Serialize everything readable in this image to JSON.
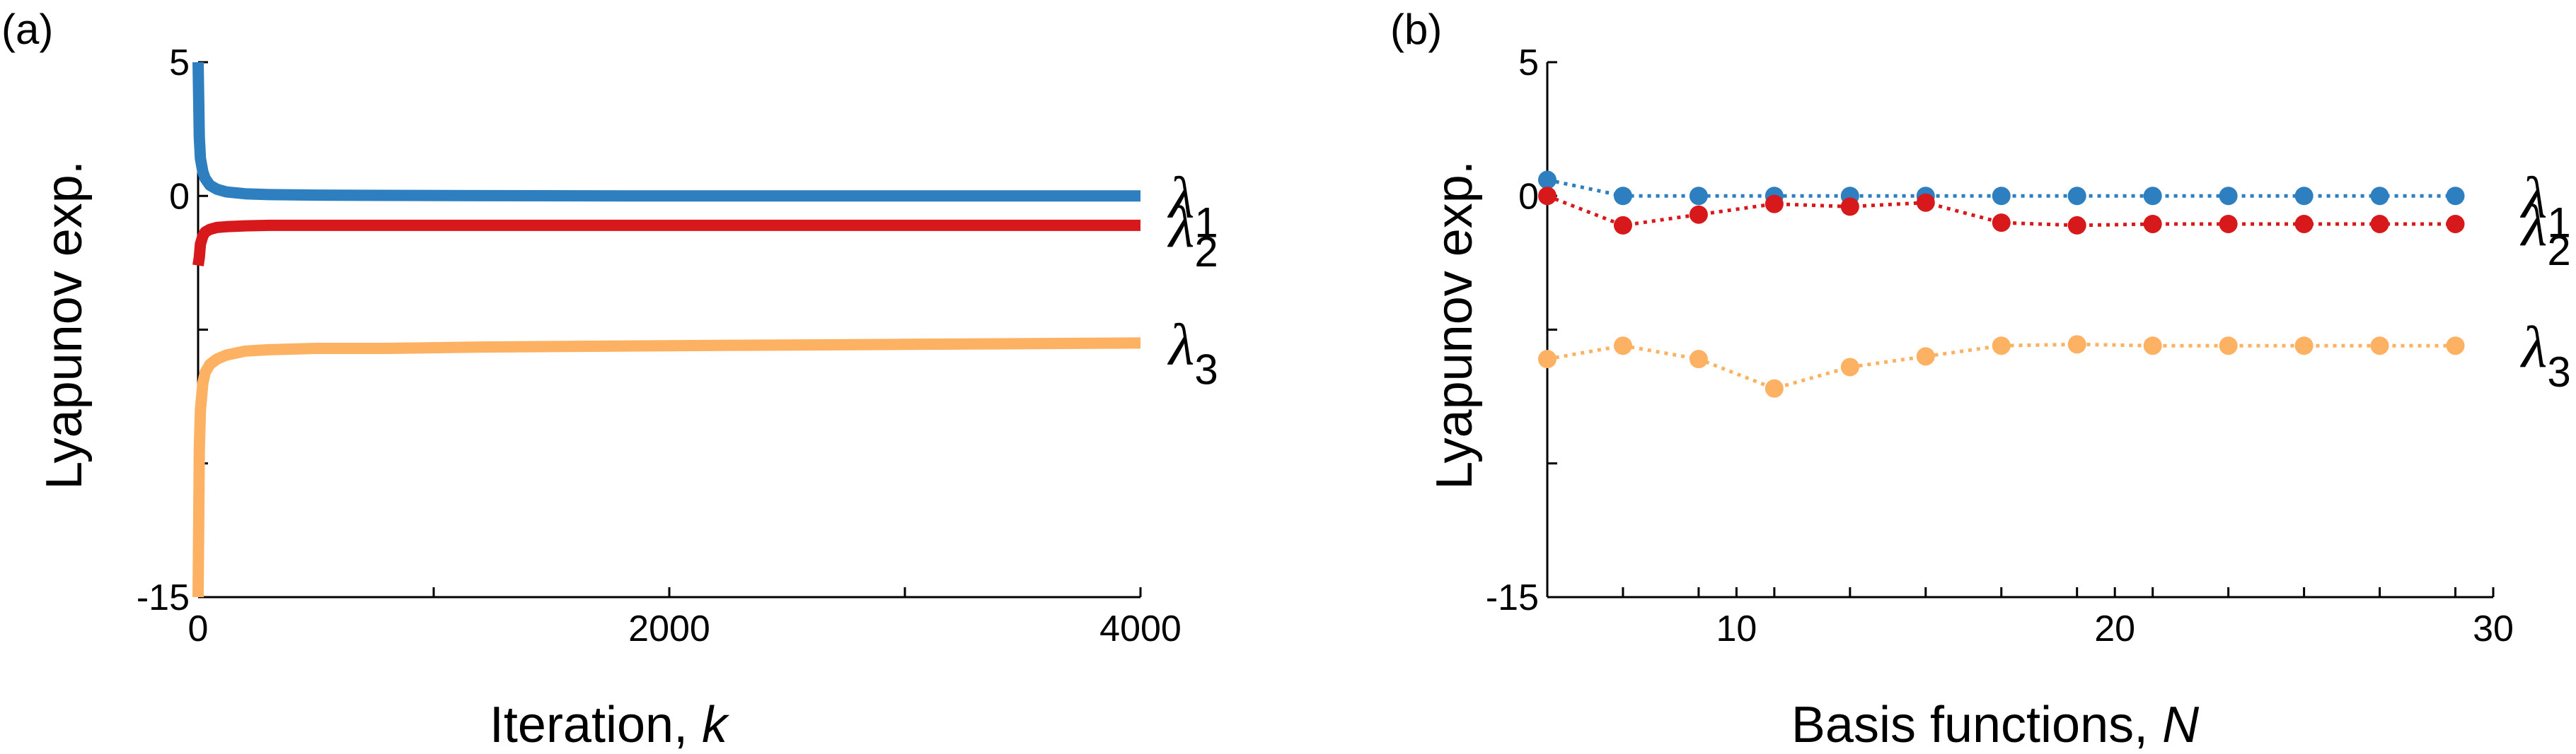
{
  "chart_data": [
    {
      "type": "line",
      "panel_label": "(a)",
      "xlabel": "Iteration, ",
      "xlabel_var": "k",
      "ylabel": "Lyapunov exp.",
      "xlim": [
        0,
        4000
      ],
      "ylim": [
        -15,
        5
      ],
      "xticks": [
        0,
        1000,
        2000,
        3000,
        4000
      ],
      "xtick_labels": [
        "0",
        "",
        "2000",
        "",
        "4000"
      ],
      "yticks": [
        -15,
        -10,
        -5,
        0,
        5
      ],
      "ytick_labels": [
        "-15",
        "",
        "",
        "0",
        "5"
      ],
      "x": [
        0,
        5,
        10,
        20,
        30,
        50,
        80,
        120,
        200,
        300,
        500,
        800,
        1200,
        2000,
        3000,
        4000
      ],
      "series": [
        {
          "name": "λ",
          "sub": "1",
          "color": "#2e7fbf",
          "values": [
            5,
            2.2,
            1.4,
            0.9,
            0.65,
            0.4,
            0.25,
            0.15,
            0.08,
            0.05,
            0.03,
            0.02,
            0.01,
            0.0,
            0.0,
            0.0
          ]
        },
        {
          "name": "λ",
          "sub": "2",
          "color": "#d7191c",
          "values": [
            -2.6,
            -2.3,
            -1.8,
            -1.5,
            -1.35,
            -1.25,
            -1.18,
            -1.15,
            -1.12,
            -1.1,
            -1.1,
            -1.1,
            -1.1,
            -1.1,
            -1.1,
            -1.1
          ]
        },
        {
          "name": "λ",
          "sub": "3",
          "color": "#fdb163",
          "values": [
            -15,
            -9.5,
            -8,
            -7.0,
            -6.6,
            -6.3,
            -6.1,
            -5.95,
            -5.8,
            -5.75,
            -5.7,
            -5.7,
            -5.65,
            -5.6,
            -5.55,
            -5.5
          ]
        }
      ]
    },
    {
      "type": "line",
      "panel_label": "(b)",
      "xlabel": "Basis functions, ",
      "xlabel_var": "N",
      "ylabel": "Lyapunov exp.",
      "xlim": [
        5,
        30
      ],
      "ylim": [
        -15,
        5
      ],
      "xticks": [
        5,
        7,
        9,
        10,
        11,
        13,
        15,
        17,
        19,
        20,
        21,
        23,
        25,
        27,
        29,
        30
      ],
      "xtick_labels": [
        "",
        "",
        "",
        "10",
        "",
        "",
        "",
        "",
        "",
        "20",
        "",
        "",
        "",
        "",
        "",
        "30"
      ],
      "yticks": [
        -15,
        -10,
        -5,
        0,
        5
      ],
      "ytick_labels": [
        "-15",
        "",
        "",
        "0",
        "5"
      ],
      "x": [
        5,
        7,
        9,
        11,
        13,
        15,
        17,
        19,
        21,
        23,
        25,
        27,
        29
      ],
      "series": [
        {
          "name": "λ",
          "sub": "1",
          "color": "#2e7fbf",
          "values": [
            0.6,
            0.0,
            0.0,
            0.0,
            0.0,
            0.0,
            0.0,
            0.0,
            0.0,
            0.0,
            0.0,
            0.0,
            0.0
          ]
        },
        {
          "name": "λ",
          "sub": "2",
          "color": "#d7191c",
          "values": [
            0.0,
            -1.1,
            -0.7,
            -0.3,
            -0.4,
            -0.25,
            -1.0,
            -1.1,
            -1.05,
            -1.05,
            -1.05,
            -1.05,
            -1.05
          ]
        },
        {
          "name": "λ",
          "sub": "3",
          "color": "#fdb163",
          "values": [
            -6.1,
            -5.6,
            -6.1,
            -7.2,
            -6.4,
            -6.0,
            -5.6,
            -5.55,
            -5.6,
            -5.6,
            -5.6,
            -5.6,
            -5.6
          ]
        }
      ]
    }
  ]
}
